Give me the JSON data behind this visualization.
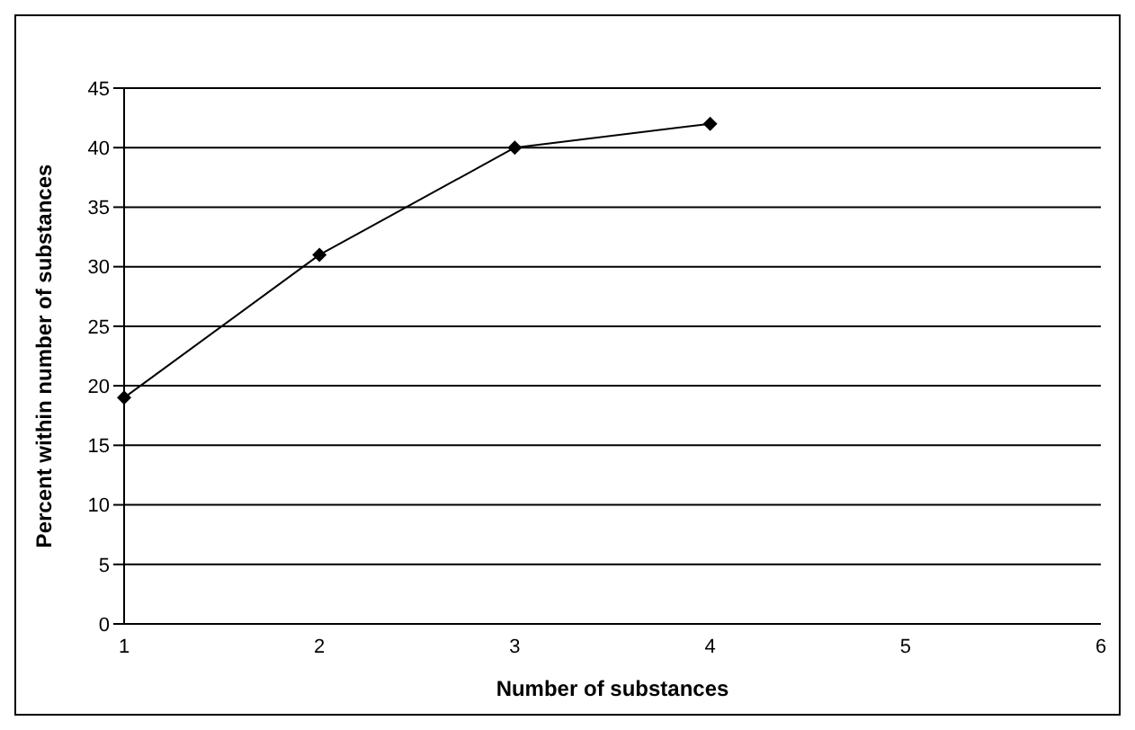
{
  "chart_data": {
    "type": "line",
    "xlabel": "Number of substances",
    "ylabel": "Percent within number of substances",
    "categories": [
      "1",
      "2",
      "3",
      "4",
      "5",
      "6"
    ],
    "series": [
      {
        "color": "#000000",
        "values": [
          19,
          31,
          40,
          42,
          null,
          null
        ]
      }
    ],
    "ylim": [
      0,
      45
    ],
    "yticks": [
      0,
      5,
      10,
      15,
      20,
      25,
      30,
      35,
      40,
      45
    ],
    "grid": "y",
    "legend": false,
    "marker": "diamond",
    "line_style": "solid"
  }
}
